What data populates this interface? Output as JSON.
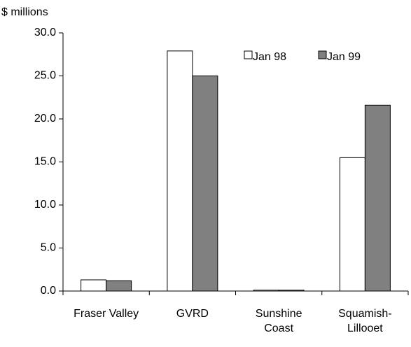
{
  "chart_data": {
    "type": "bar",
    "y_label": "$ millions",
    "categories": [
      "Fraser Valley",
      "GVRD",
      "Sunshine Coast",
      "Squamish-Lillooet"
    ],
    "series": [
      {
        "name": "Jan 98",
        "color": "#ffffff",
        "values": [
          1.3,
          27.9,
          0.1,
          15.5
        ]
      },
      {
        "name": "Jan 99",
        "color": "#808080",
        "values": [
          1.2,
          25.0,
          0.1,
          21.6
        ]
      }
    ],
    "ylim": [
      0,
      30
    ],
    "yticks": [
      {
        "value": 0,
        "label": "0.0"
      },
      {
        "value": 5,
        "label": "5.0"
      },
      {
        "value": 10,
        "label": "10.0"
      },
      {
        "value": 15,
        "label": "15.0"
      },
      {
        "value": 20,
        "label": "20.0"
      },
      {
        "value": 25,
        "label": "25.0"
      },
      {
        "value": 30,
        "label": "30.0"
      }
    ],
    "legend": "upper right",
    "grid": false
  }
}
